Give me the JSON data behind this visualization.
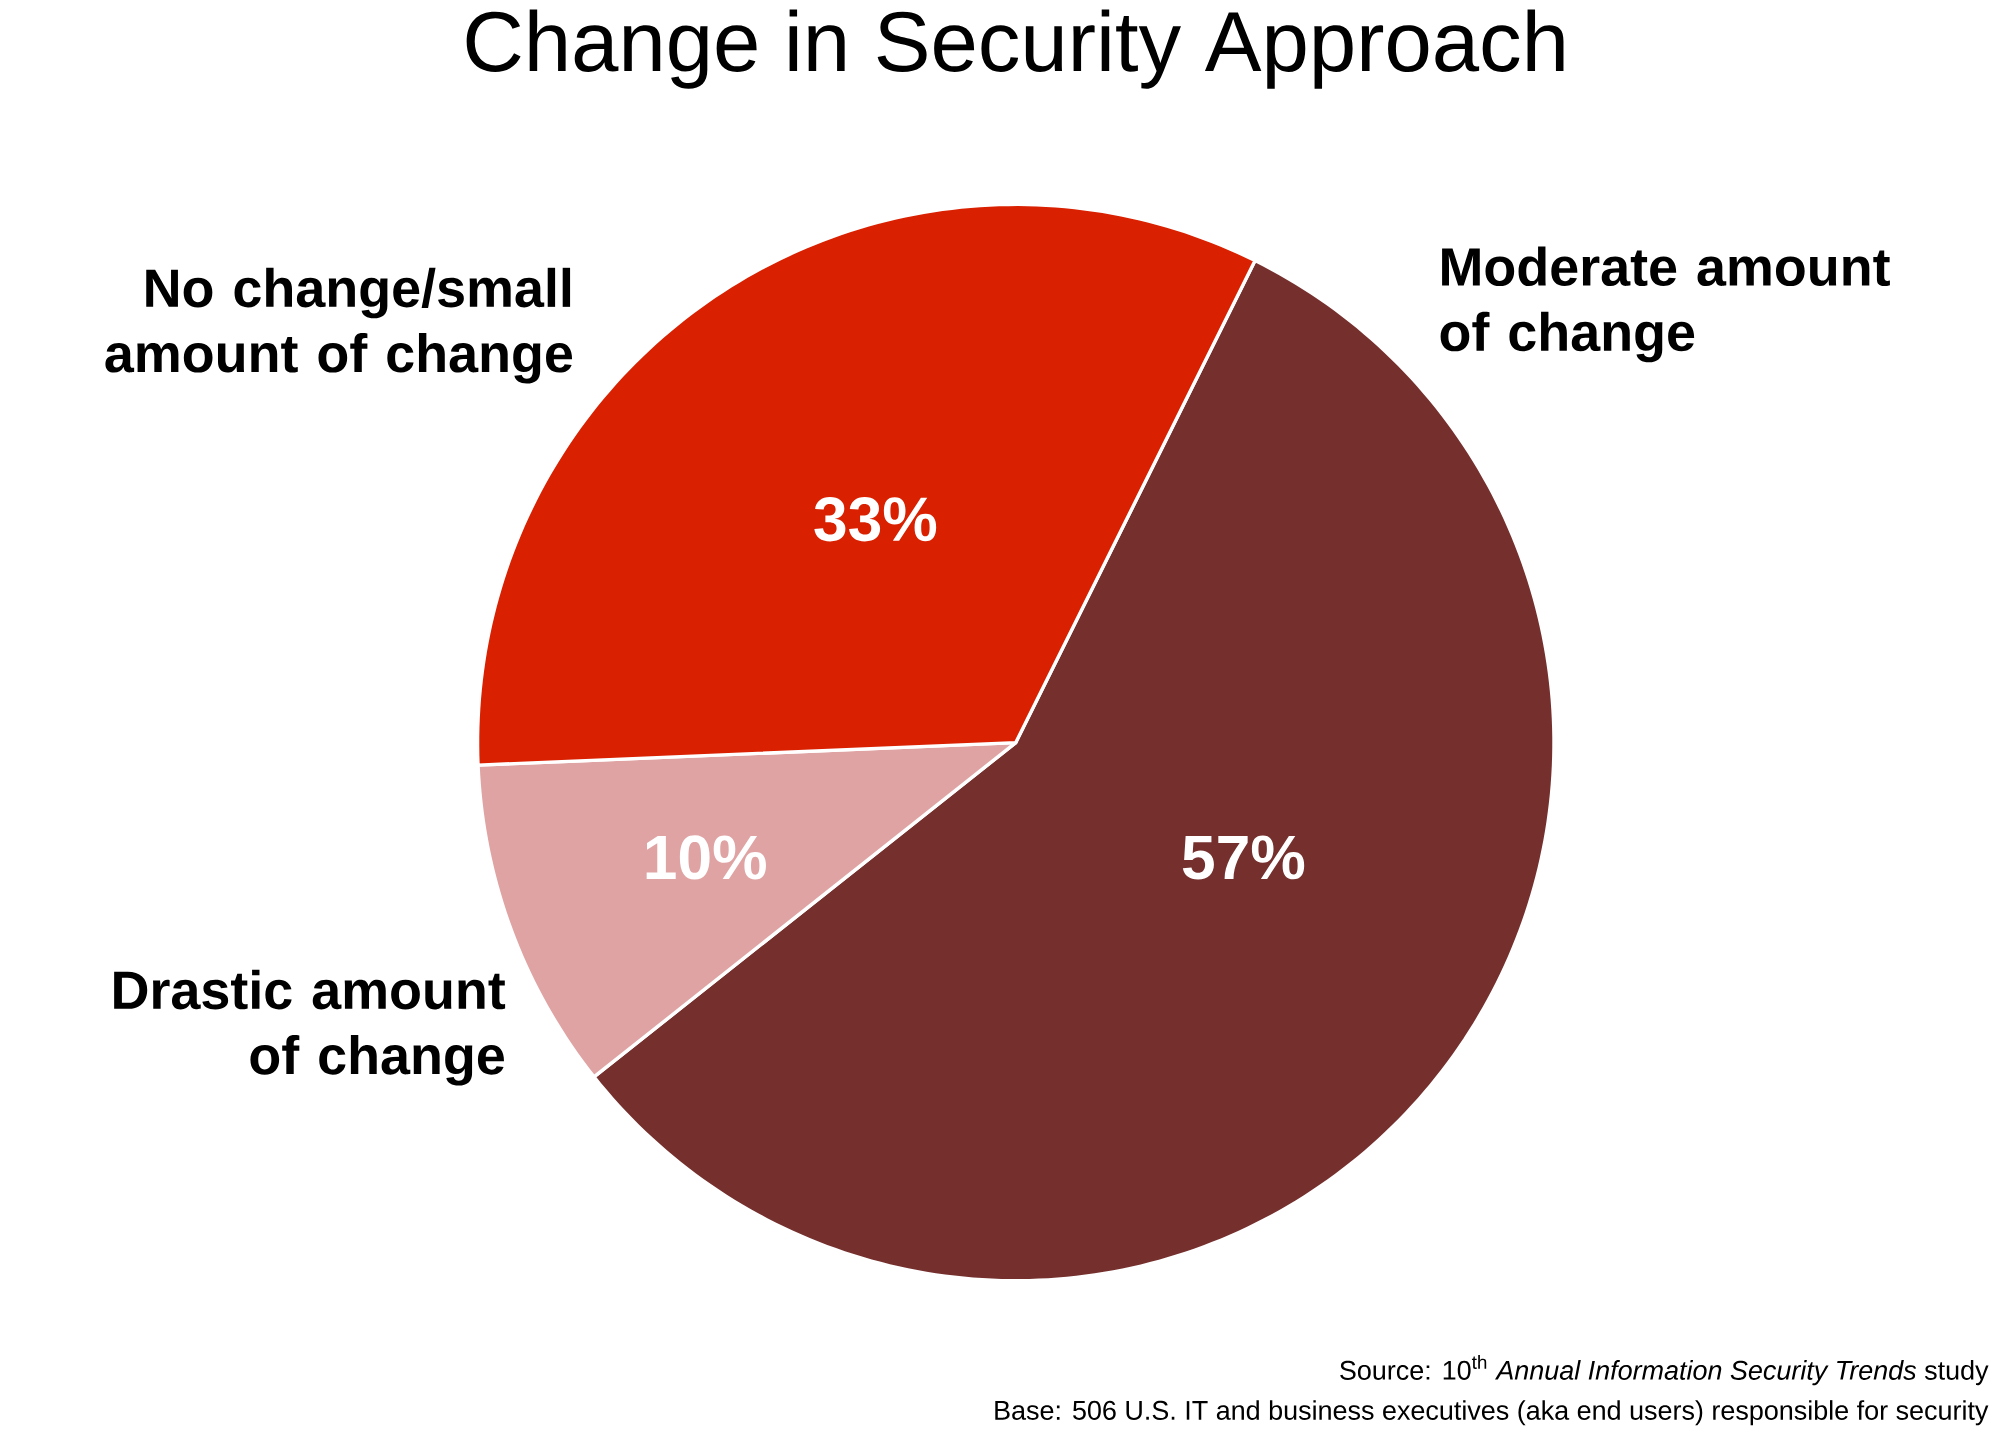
{
  "chart_data": {
    "type": "pie",
    "title": "Change in Security Approach",
    "categories": [
      "Moderate amount of change",
      "Drastic amount of change",
      "No change/small amount of change"
    ],
    "values": [
      57,
      10,
      33
    ],
    "colors": [
      "#75302e",
      "#e0a3a3",
      "#d92000"
    ],
    "value_labels": [
      "57%",
      "10%",
      "33%"
    ],
    "annotations": [
      "Source: 10$^{th}$ *Annual Information Security Trends* study",
      "Base: 506 U.S. IT and business executives (aka end users) responsible for security"
    ]
  }
}
